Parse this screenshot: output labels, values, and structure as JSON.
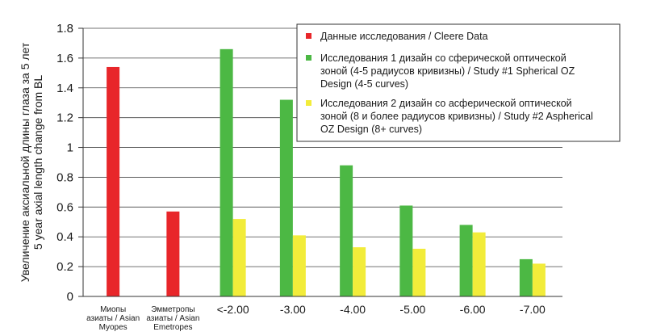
{
  "chart_data": {
    "type": "bar",
    "ylabel": [
      "Увеличение аксиальной длины глаза за 5 лет",
      "5 year axial length change from BL"
    ],
    "ylim": [
      0,
      1.8
    ],
    "yticks": [
      "0",
      "0.2",
      "0.4",
      "0.6",
      "0.8",
      "1",
      "1.2",
      "1.4",
      "1.6",
      "1.8"
    ],
    "grid": true,
    "legend_position": "top-right",
    "categories": [
      [
        "Миопы",
        "азиаты / Asian",
        "Myopes"
      ],
      [
        "Эмметропы",
        "азиаты / Asian",
        "Emetropes"
      ],
      [
        "<-2.00"
      ],
      [
        "-3.00"
      ],
      [
        "-4.00"
      ],
      [
        "-5.00"
      ],
      [
        "-6.00"
      ],
      [
        "-7.00"
      ]
    ],
    "series": [
      {
        "name": "Данные исследования / Cleere Data",
        "legend_lines": [
          "Данные исследования / Cleere Data"
        ],
        "color": "#e8262a",
        "values": [
          1.54,
          0.57,
          null,
          null,
          null,
          null,
          null,
          null
        ]
      },
      {
        "name": "Исследования 1 дизайн со сферической оптической зоной (4-5 радиусов кривизны) / Study #1 Spherical OZ Design (4-5 curves)",
        "legend_lines": [
          "Исследования 1 дизайн со сферической оптической",
          "зоной (4-5 радиусов кривизны) / Study #1 Spherical OZ",
          "Design (4-5 curves)"
        ],
        "color": "#4cb844",
        "values": [
          null,
          null,
          1.66,
          1.32,
          0.88,
          0.61,
          0.48,
          0.25
        ]
      },
      {
        "name": "Исследования 2 дизайн со асферической оптической зоной (8 и более радиусов кривизны) / Study #2 Aspherical OZ Design (8+ curves)",
        "legend_lines": [
          "Исследования 2 дизайн со асферической оптической",
          "зоной (8 и более радиусов кривизны) / Study #2 Aspherical",
          "OZ Design (8+ curves)"
        ],
        "color": "#f2ec3a",
        "values": [
          null,
          null,
          0.52,
          0.41,
          0.33,
          0.32,
          0.43,
          0.22
        ]
      }
    ]
  }
}
